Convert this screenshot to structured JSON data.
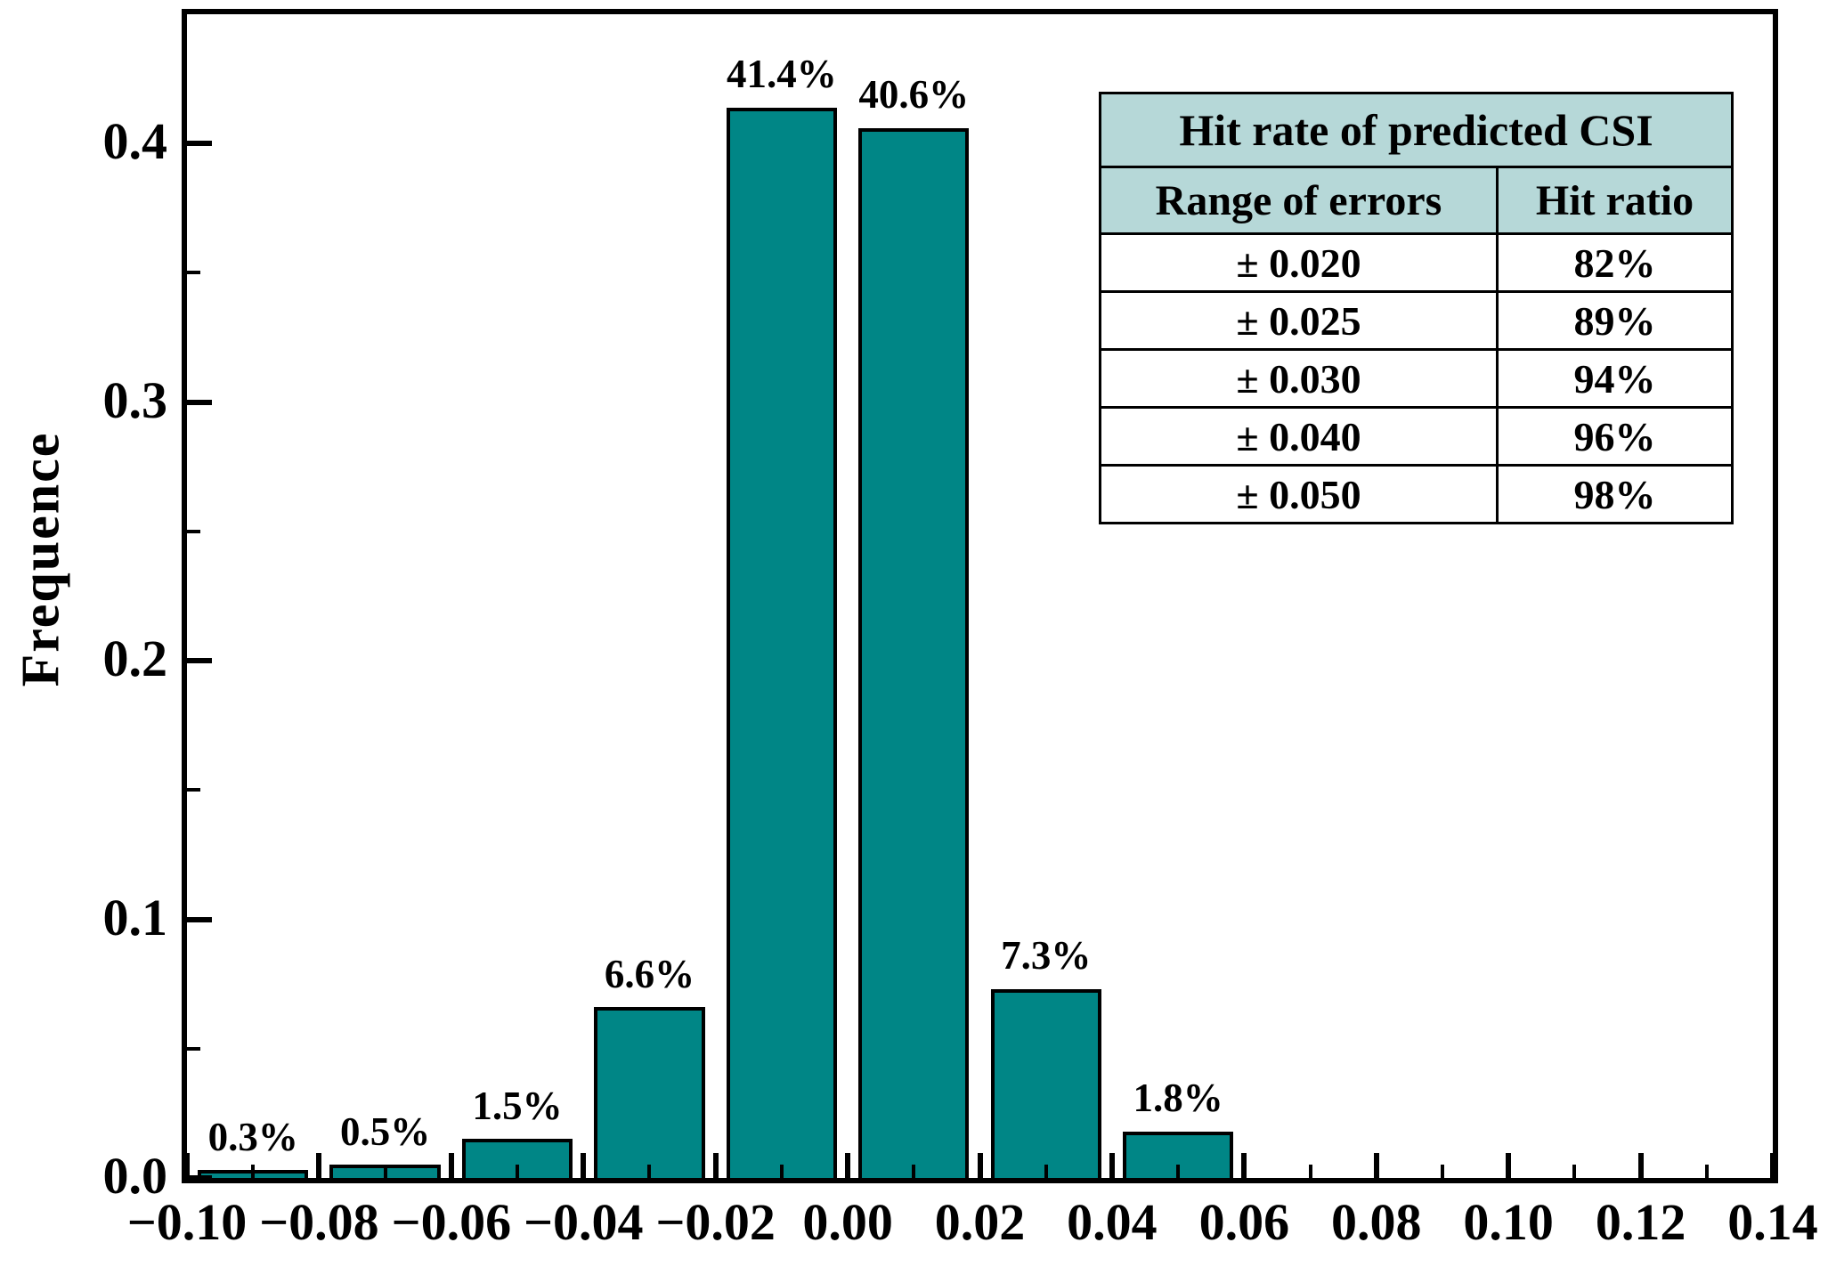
{
  "chart_data": {
    "type": "bar",
    "title": "",
    "xlabel": "",
    "ylabel": "Frequence",
    "x_axis": {
      "range": [
        -0.1,
        0.14
      ],
      "major_ticks": [
        -0.1,
        -0.08,
        -0.06,
        -0.04,
        -0.02,
        0.0,
        0.02,
        0.04,
        0.06,
        0.08,
        0.1,
        0.12,
        0.14
      ],
      "minor_ticks": [
        -0.09,
        -0.07,
        -0.05,
        -0.03,
        -0.01,
        0.01,
        0.03,
        0.05,
        0.07,
        0.09,
        0.11,
        0.13
      ],
      "tick_labels": [
        "−0.10",
        "−0.08",
        "−0.06",
        "−0.04",
        "−0.02",
        "0.00",
        "0.02",
        "0.04",
        "0.06",
        "0.08",
        "0.10",
        "0.12",
        "0.14"
      ]
    },
    "y_axis": {
      "range": [
        0,
        0.45
      ],
      "major_ticks": [
        0,
        0.1,
        0.2,
        0.3,
        0.4
      ],
      "minor_ticks": [
        0.05,
        0.15,
        0.25,
        0.35
      ],
      "tick_labels": [
        "0.0",
        "0.1",
        "0.2",
        "0.3",
        "0.4"
      ]
    },
    "grid": "off",
    "bars": [
      {
        "bin_start": -0.1,
        "bin_end": -0.08,
        "frequency": 0.003,
        "label": "0.3%"
      },
      {
        "bin_start": -0.08,
        "bin_end": -0.06,
        "frequency": 0.005,
        "label": "0.5%"
      },
      {
        "bin_start": -0.06,
        "bin_end": -0.04,
        "frequency": 0.015,
        "label": "1.5%"
      },
      {
        "bin_start": -0.04,
        "bin_end": -0.02,
        "frequency": 0.066,
        "label": "6.6%"
      },
      {
        "bin_start": -0.02,
        "bin_end": 0.0,
        "frequency": 0.414,
        "label": "41.4%"
      },
      {
        "bin_start": 0.0,
        "bin_end": 0.02,
        "frequency": 0.406,
        "label": "40.6%"
      },
      {
        "bin_start": 0.02,
        "bin_end": 0.04,
        "frequency": 0.073,
        "label": "7.3%"
      },
      {
        "bin_start": 0.04,
        "bin_end": 0.06,
        "frequency": 0.018,
        "label": "1.8%"
      }
    ]
  },
  "inset_table": {
    "title": "Hit rate of predicted CSI",
    "headers": [
      "Range of  errors",
      "Hit ratio"
    ],
    "rows": [
      {
        "range": "± 0.020",
        "hit": "82%"
      },
      {
        "range": "± 0.025",
        "hit": "89%"
      },
      {
        "range": "± 0.030",
        "hit": "94%"
      },
      {
        "range": "± 0.040",
        "hit": "96%"
      },
      {
        "range": "± 0.050",
        "hit": "98%"
      }
    ]
  },
  "colors": {
    "bar_fill": "#008686",
    "bar_border": "#000000",
    "axis_color": "#000000",
    "table_header_bg": "#b6d8d8"
  }
}
